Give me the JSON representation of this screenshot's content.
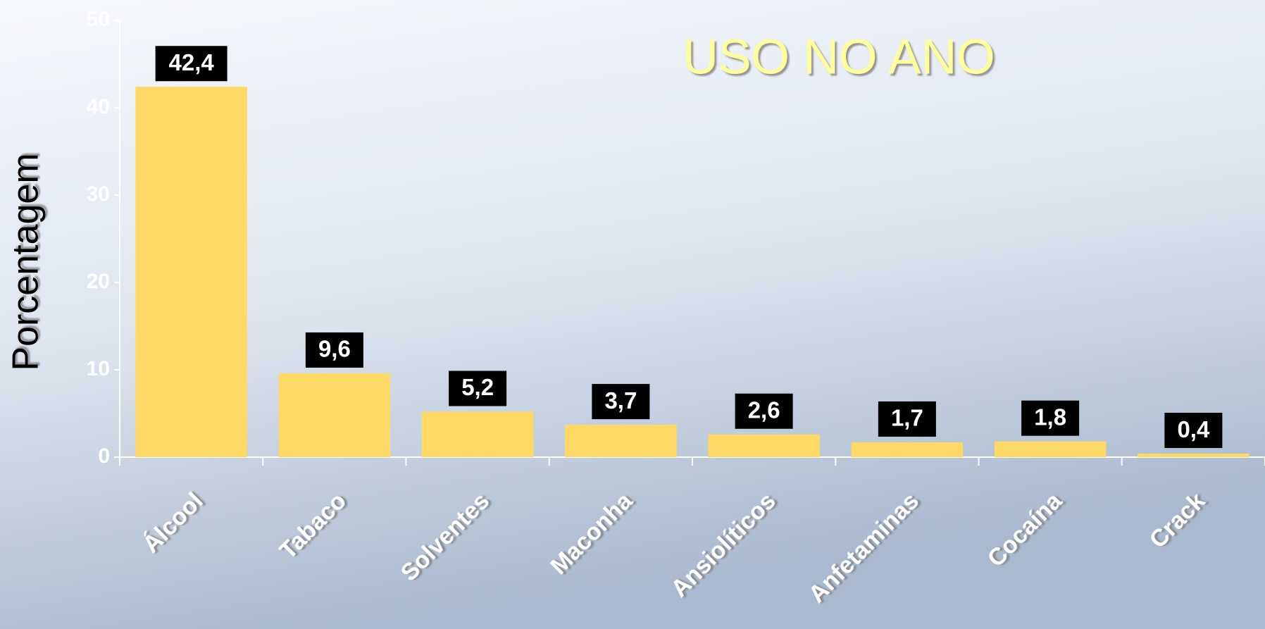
{
  "chart_data": {
    "type": "bar",
    "title": "USO NO ANO",
    "y_label": "Porcentagem",
    "categories": [
      "Álcool",
      "Tabaco",
      "Solventes",
      "Maconha",
      "Ansiolíticos",
      "Anfetaminas",
      "Cocaína",
      "Crack"
    ],
    "values": [
      42.4,
      9.6,
      5.2,
      3.7,
      2.6,
      1.7,
      1.8,
      0.4
    ],
    "value_labels": [
      "42,4",
      "9,6",
      "5,2",
      "3,7",
      "2,6",
      "1,7",
      "1,8",
      "0,4"
    ],
    "color": "#ffd966",
    "ylim": [
      0,
      50
    ],
    "yticks": [
      0,
      10,
      20,
      30,
      40,
      50
    ],
    "grid": false
  }
}
